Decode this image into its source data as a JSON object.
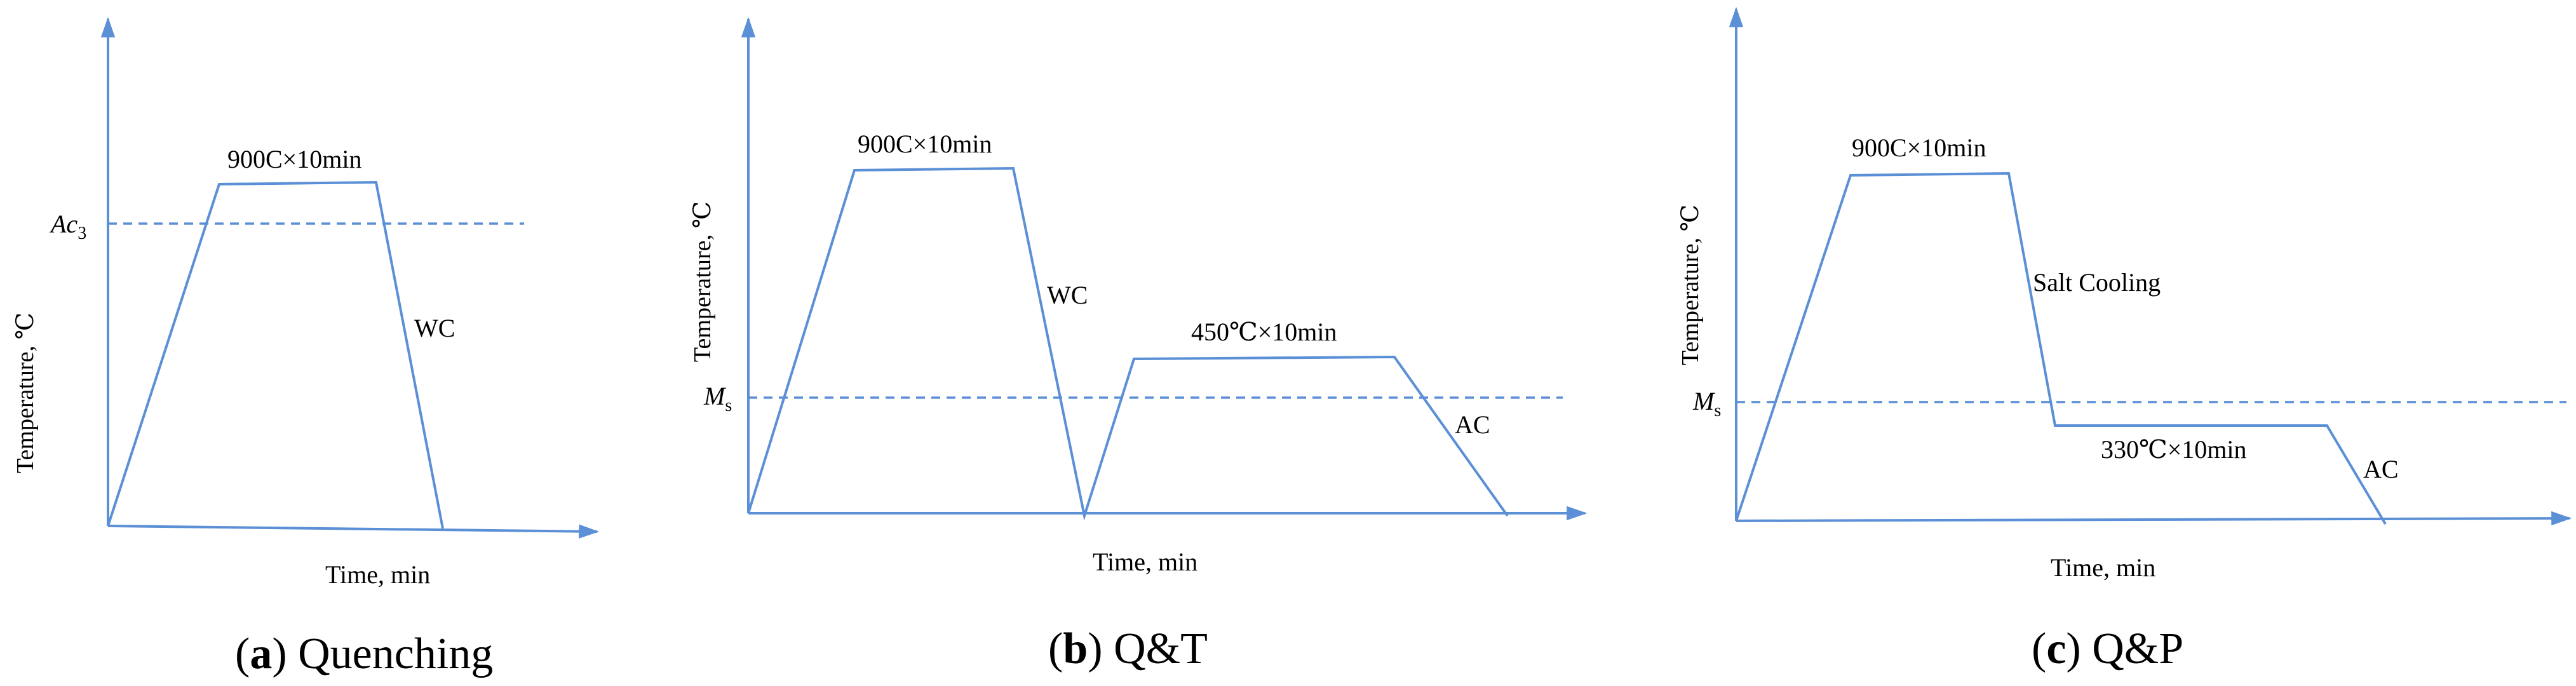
{
  "panels": [
    {
      "id": "a",
      "caption_letter": "a",
      "caption_text": " Quenching",
      "y_label": "Temperature, ℃",
      "x_label": "Time, min",
      "ref_line": {
        "symbol": "Ac",
        "subscript": "3"
      },
      "stages": [
        {
          "label": "900C×10min"
        },
        {
          "label": "WC"
        }
      ]
    },
    {
      "id": "b",
      "caption_letter": "b",
      "caption_text": " Q&T",
      "y_label": "Temperature, ℃",
      "x_label": "Time, min",
      "ref_line": {
        "symbol": "M",
        "subscript": "s"
      },
      "stages": [
        {
          "label": "900C×10min"
        },
        {
          "label": "WC"
        },
        {
          "label": "450℃×10min"
        },
        {
          "label": "AC"
        }
      ]
    },
    {
      "id": "c",
      "caption_letter": "c",
      "caption_text": " Q&P",
      "y_label": "Temperature, ℃",
      "x_label": "Time, min",
      "ref_line": {
        "symbol": "M",
        "subscript": "s"
      },
      "stages": [
        {
          "label": "900C×10min"
        },
        {
          "label": "Salt Cooling"
        },
        {
          "label": "330℃×10min"
        },
        {
          "label": "AC"
        }
      ]
    }
  ],
  "colors": {
    "line": "#5b8fd6",
    "text": "#000000"
  },
  "caption_parens": {
    "open": "(",
    "close": ")"
  }
}
